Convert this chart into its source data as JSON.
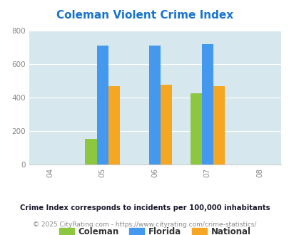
{
  "title": "Coleman Violent Crime Index",
  "title_color": "#1874CD",
  "title_fontsize": 11,
  "years": [
    2004,
    2005,
    2006,
    2007,
    2008
  ],
  "bar_years": [
    2005,
    2006,
    2007
  ],
  "coleman": [
    152,
    0,
    425
  ],
  "florida": [
    710,
    710,
    720
  ],
  "national": [
    467,
    478,
    467
  ],
  "coleman_color": "#8DC63F",
  "florida_color": "#4499EE",
  "national_color": "#F5A623",
  "ylim": [
    0,
    800
  ],
  "yticks": [
    0,
    200,
    400,
    600,
    800
  ],
  "plot_bg_color": "#D6E8EE",
  "fig_bg_color": "#FFFFFF",
  "legend_labels": [
    "Coleman",
    "Florida",
    "National"
  ],
  "footnote1": "Crime Index corresponds to incidents per 100,000 inhabitants",
  "footnote2": "© 2025 CityRating.com - https://www.cityrating.com/crime-statistics/",
  "footnote1_color": "#1a1a2e",
  "footnote2_color": "#888888",
  "bar_width": 0.22,
  "grid_color": "#FFFFFF",
  "tick_label_color": "#888888"
}
